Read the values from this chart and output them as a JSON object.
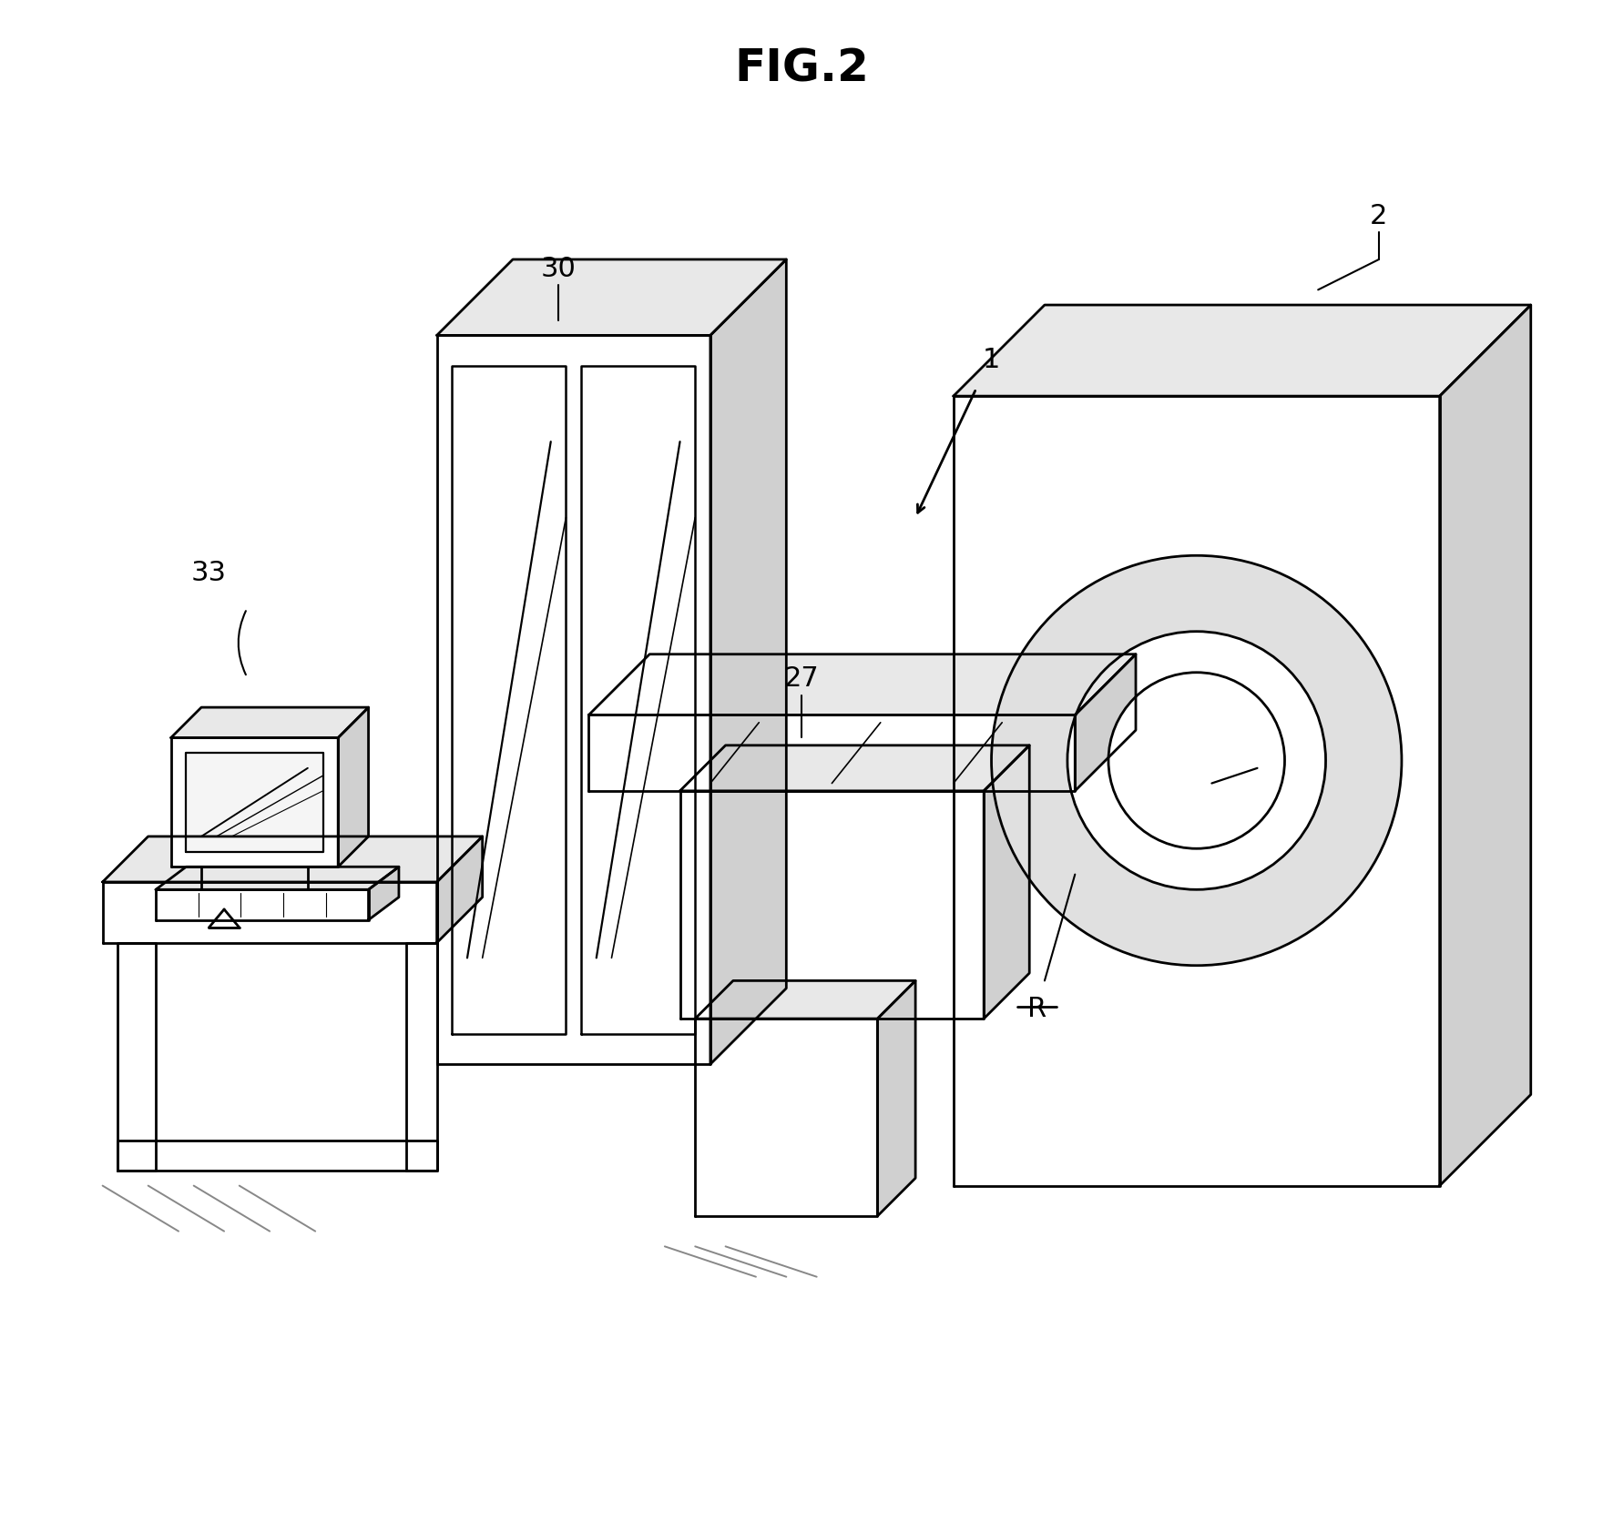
{
  "title": "FIG.2",
  "title_fontsize": 36,
  "bg_color": "#ffffff",
  "line_color": "#000000",
  "line_width": 2.0,
  "label_fontsize": 22
}
